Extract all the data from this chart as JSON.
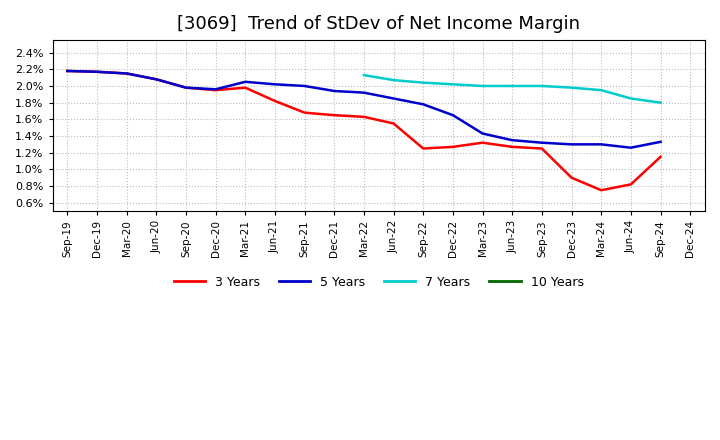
{
  "title": "[3069]  Trend of StDev of Net Income Margin",
  "background_color": "#ffffff",
  "title_fontsize": 13,
  "series": {
    "3yr": {
      "color": "#ff0000",
      "label": "3 Years",
      "xi": [
        0,
        1,
        2,
        3,
        4,
        5,
        6,
        7,
        8,
        9,
        10,
        11,
        12,
        13,
        14,
        15,
        16,
        17,
        18,
        19,
        20
      ],
      "y": [
        0.0218,
        0.0217,
        0.0215,
        0.0208,
        0.0198,
        0.0195,
        0.0198,
        0.0182,
        0.0168,
        0.0165,
        0.0163,
        0.0155,
        0.0125,
        0.0127,
        0.0132,
        0.0127,
        0.0125,
        0.009,
        0.0075,
        0.0082,
        0.0115
      ]
    },
    "5yr": {
      "color": "#0000cc",
      "label": "5 Years",
      "xi": [
        0,
        1,
        2,
        3,
        4,
        5,
        6,
        7,
        8,
        9,
        10,
        11,
        12,
        13,
        14,
        15,
        16,
        17,
        18,
        19,
        20
      ],
      "y": [
        0.0218,
        0.0217,
        0.0215,
        0.0208,
        0.0198,
        0.0196,
        0.0205,
        0.0202,
        0.02,
        0.0194,
        0.0192,
        0.0185,
        0.0178,
        0.0165,
        0.0143,
        0.0135,
        0.0132,
        0.013,
        0.013,
        0.0126,
        0.0133
      ]
    },
    "7yr": {
      "color": "#00cccc",
      "label": "7 Years",
      "xi": [
        10,
        11,
        12,
        13,
        14,
        15,
        16,
        17,
        18,
        19,
        20
      ],
      "y": [
        0.0213,
        0.0207,
        0.0204,
        0.0202,
        0.02,
        0.02,
        0.02,
        0.0198,
        0.0195,
        0.0185,
        0.018
      ]
    },
    "10yr": {
      "color": "#006600",
      "label": "10 Years",
      "xi": [],
      "y": []
    }
  },
  "xtick_labels": [
    "Sep-19",
    "Dec-19",
    "Mar-20",
    "Jun-20",
    "Sep-20",
    "Dec-20",
    "Mar-21",
    "Jun-21",
    "Sep-21",
    "Dec-21",
    "Mar-22",
    "Jun-22",
    "Sep-22",
    "Dec-22",
    "Mar-23",
    "Jun-23",
    "Sep-23",
    "Dec-23",
    "Mar-24",
    "Jun-24",
    "Sep-24",
    "Dec-24"
  ],
  "ytick_vals": [
    0.006,
    0.008,
    0.01,
    0.012,
    0.014,
    0.016,
    0.018,
    0.02,
    0.022,
    0.024
  ],
  "ytick_labels": [
    "0.6%",
    "0.8%",
    "1.0%",
    "1.2%",
    "1.4%",
    "1.6%",
    "1.8%",
    "2.0%",
    "2.2%",
    "2.4%"
  ],
  "ylim": [
    0.005,
    0.0255
  ],
  "legend_entries": [
    "3 Years",
    "5 Years",
    "7 Years",
    "10 Years"
  ],
  "legend_colors": [
    "#ff0000",
    "#0000cc",
    "#00cccc",
    "#006600"
  ]
}
